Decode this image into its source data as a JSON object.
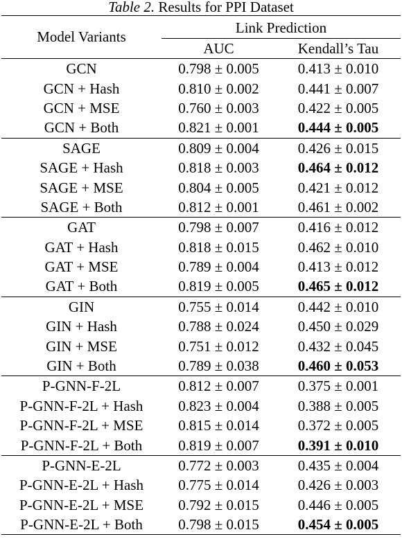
{
  "caption": {
    "label": "Table 2.",
    "text": "Results for PPI Dataset"
  },
  "header": {
    "model_col": "Model Variants",
    "group": "Link Prediction",
    "auc": "AUC",
    "tau": "Kendall’s Tau"
  },
  "groups": [
    {
      "rows": [
        {
          "model": "GCN",
          "auc": "0.798 ± 0.005",
          "tau": "0.413 ± 0.010",
          "tau_bold": false
        },
        {
          "model": "GCN + Hash",
          "auc": "0.810 ± 0.002",
          "tau": "0.441 ± 0.007",
          "tau_bold": false
        },
        {
          "model": "GCN + MSE",
          "auc": "0.760 ± 0.003",
          "tau": "0.422 ± 0.005",
          "tau_bold": false
        },
        {
          "model": "GCN + Both",
          "auc": "0.821 ± 0.001",
          "tau": "0.444 ± 0.005",
          "tau_bold": true
        }
      ]
    },
    {
      "rows": [
        {
          "model": "SAGE",
          "auc": "0.809 ± 0.004",
          "tau": "0.426 ± 0.015",
          "tau_bold": false
        },
        {
          "model": "SAGE + Hash",
          "auc": "0.818 ± 0.003",
          "tau": "0.464 ± 0.012",
          "tau_bold": true
        },
        {
          "model": "SAGE + MSE",
          "auc": "0.804 ± 0.005",
          "tau": "0.421 ± 0.012",
          "tau_bold": false
        },
        {
          "model": "SAGE + Both",
          "auc": "0.812 ± 0.001",
          "tau": "0.461 ± 0.002",
          "tau_bold": false
        }
      ]
    },
    {
      "rows": [
        {
          "model": "GAT",
          "auc": "0.798 ± 0.007",
          "tau": "0.416 ± 0.012",
          "tau_bold": false
        },
        {
          "model": "GAT + Hash",
          "auc": "0.818 ± 0.015",
          "tau": "0.462 ± 0.010",
          "tau_bold": false
        },
        {
          "model": "GAT + MSE",
          "auc": "0.789 ± 0.004",
          "tau": "0.413 ± 0.012",
          "tau_bold": false
        },
        {
          "model": "GAT + Both",
          "auc": "0.819 ± 0.005",
          "tau": "0.465 ± 0.012",
          "tau_bold": true
        }
      ]
    },
    {
      "rows": [
        {
          "model": "GIN",
          "auc": "0.755 ± 0.014",
          "tau": "0.442 ± 0.010",
          "tau_bold": false
        },
        {
          "model": "GIN + Hash",
          "auc": "0.788 ± 0.024",
          "tau": "0.450 ± 0.029",
          "tau_bold": false
        },
        {
          "model": "GIN + MSE",
          "auc": "0.751 ± 0.012",
          "tau": "0.432 ± 0.045",
          "tau_bold": false
        },
        {
          "model": "GIN + Both",
          "auc": "0.789 ± 0.038",
          "tau": "0.460 ± 0.053",
          "tau_bold": true
        }
      ]
    },
    {
      "rows": [
        {
          "model": "P-GNN-F-2L",
          "auc": "0.812 ± 0.007",
          "tau": "0.375 ± 0.001",
          "tau_bold": false
        },
        {
          "model": "P-GNN-F-2L + Hash",
          "auc": "0.823 ± 0.004",
          "tau": "0.388 ± 0.005",
          "tau_bold": false
        },
        {
          "model": "P-GNN-F-2L + MSE",
          "auc": "0.815 ± 0.014",
          "tau": "0.372 ± 0.005",
          "tau_bold": false
        },
        {
          "model": "P-GNN-F-2L + Both",
          "auc": "0.819 ± 0.007",
          "tau": "0.391 ± 0.010",
          "tau_bold": true
        }
      ]
    },
    {
      "rows": [
        {
          "model": "P-GNN-E-2L",
          "auc": "0.772 ± 0.003",
          "tau": "0.435 ± 0.004",
          "tau_bold": false
        },
        {
          "model": "P-GNN-E-2L + Hash",
          "auc": "0.775 ± 0.014",
          "tau": "0.426 ± 0.003",
          "tau_bold": false
        },
        {
          "model": "P-GNN-E-2L + MSE",
          "auc": "0.792 ± 0.015",
          "tau": "0.446 ± 0.005",
          "tau_bold": false
        },
        {
          "model": "P-GNN-E-2L + Both",
          "auc": "0.798 ± 0.015",
          "tau": "0.454 ± 0.005",
          "tau_bold": true
        }
      ]
    }
  ]
}
